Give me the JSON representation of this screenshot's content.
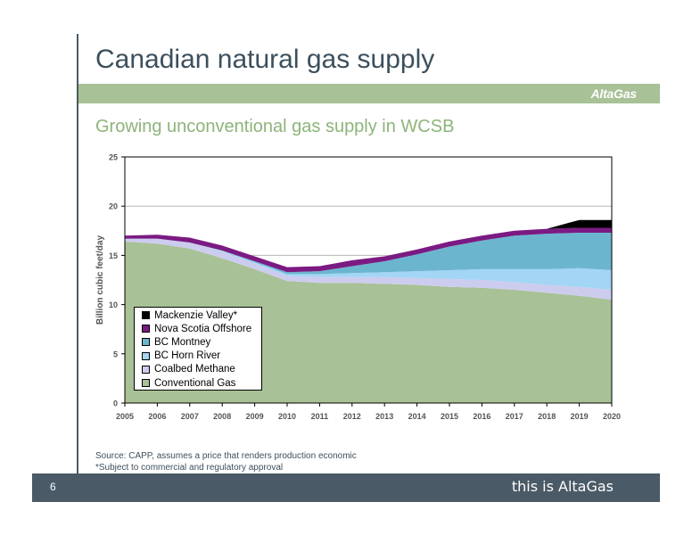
{
  "slide": {
    "title": "Canadian natural gas supply",
    "logo": "AltaGas",
    "subtitle": "Growing unconventional gas supply in WCSB",
    "source_line1": "Source: CAPP, assumes a price that renders production economic",
    "source_line2": "*Subject to commercial and regulatory approval",
    "page_number": "6",
    "tagline": "this is AltaGas"
  },
  "chart_data": {
    "type": "area",
    "stacked": true,
    "ylabel": "Billion cubic feet/day",
    "xlabel": "",
    "ylim": [
      0,
      25
    ],
    "yticks": [
      "0",
      "5",
      "10",
      "15",
      "20",
      "25"
    ],
    "x": [
      "2005",
      "2006",
      "2007",
      "2008",
      "2009",
      "2010",
      "2011",
      "2012",
      "2013",
      "2014",
      "2015",
      "2016",
      "2017",
      "2018",
      "2019",
      "2020"
    ],
    "grid": true,
    "legend_position": "lower-left",
    "series": [
      {
        "name": "Conventional Gas",
        "color": "#a8c196",
        "values": [
          16.4,
          16.2,
          15.7,
          14.7,
          13.6,
          12.4,
          12.2,
          12.2,
          12.1,
          12.0,
          11.8,
          11.7,
          11.5,
          11.2,
          10.9,
          10.5
        ]
      },
      {
        "name": "Coalbed Methane",
        "color": "#ccccee",
        "values": [
          0.3,
          0.5,
          0.6,
          0.7,
          0.6,
          0.5,
          0.6,
          0.6,
          0.7,
          0.7,
          0.8,
          0.8,
          0.8,
          0.8,
          0.9,
          1.0
        ]
      },
      {
        "name": "BC Horn River",
        "color": "#a3d5f5",
        "values": [
          0.0,
          0.0,
          0.0,
          0.05,
          0.1,
          0.2,
          0.3,
          0.4,
          0.5,
          0.7,
          0.9,
          1.1,
          1.3,
          1.6,
          1.9,
          2.0
        ]
      },
      {
        "name": "BC Montney",
        "color": "#6cb5cf",
        "values": [
          0.0,
          0.0,
          0.0,
          0.05,
          0.1,
          0.2,
          0.3,
          0.7,
          1.1,
          1.7,
          2.4,
          2.9,
          3.4,
          3.6,
          3.6,
          3.8
        ]
      },
      {
        "name": "Nova Scotia Offshore",
        "color": "#7b1a82",
        "values": [
          0.3,
          0.4,
          0.5,
          0.5,
          0.5,
          0.5,
          0.5,
          0.6,
          0.5,
          0.5,
          0.5,
          0.5,
          0.5,
          0.5,
          0.5,
          0.5
        ]
      },
      {
        "name": "Mackenzie Valley*",
        "color": "#000000",
        "values": [
          0.0,
          0.0,
          0.0,
          0.0,
          0.0,
          0.0,
          0.0,
          0.0,
          0.0,
          0.0,
          0.0,
          0.0,
          0.0,
          0.0,
          0.8,
          0.8
        ]
      }
    ]
  }
}
